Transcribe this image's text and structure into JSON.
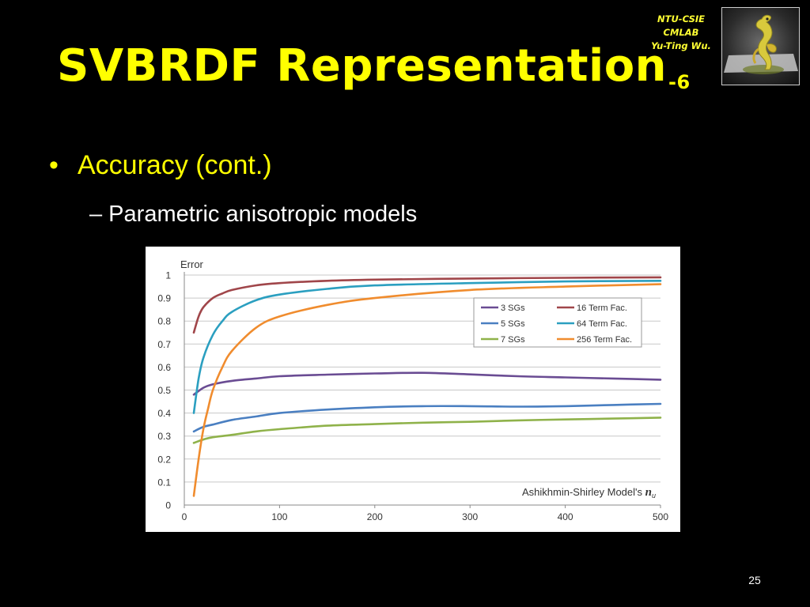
{
  "slide": {
    "title": "SVBRDF Representation",
    "title_suffix": "-6",
    "lab_line1": "NTU-CSIE",
    "lab_line2": "CMLAB",
    "lab_line3": "Yu-Ting Wu.",
    "bullet_marker": "•",
    "bullet": "Accuracy (cont.)",
    "sub_bullet": "– Parametric anisotropic models",
    "page_number": "25",
    "colors": {
      "background": "#000000",
      "title": "#ffff00",
      "text": "#ffffff"
    }
  },
  "chart_data": {
    "type": "line",
    "ylabel": "Error",
    "xlabel": "Ashikhmin-Shirley Model's",
    "xlabel_symbol": "n",
    "xlabel_subscript": "u",
    "xlim": [
      0,
      500
    ],
    "ylim": [
      0,
      1
    ],
    "xticks": [
      0,
      100,
      200,
      300,
      400,
      500
    ],
    "yticks": [
      0,
      0.1,
      0.2,
      0.3,
      0.4,
      0.5,
      0.6,
      0.7,
      0.8,
      0.9,
      1
    ],
    "grid": "horizontal",
    "legend_position": "top-right",
    "series": [
      {
        "name": "3 SGs",
        "color": "#6a4c93",
        "x": [
          10,
          20,
          30,
          50,
          75,
          100,
          150,
          200,
          250,
          300,
          350,
          400,
          450,
          500
        ],
        "y": [
          0.48,
          0.51,
          0.525,
          0.54,
          0.55,
          0.56,
          0.567,
          0.572,
          0.575,
          0.568,
          0.56,
          0.555,
          0.55,
          0.545
        ]
      },
      {
        "name": "5 SGs",
        "color": "#4a7fc1",
        "x": [
          10,
          20,
          30,
          50,
          75,
          100,
          150,
          200,
          250,
          300,
          350,
          400,
          450,
          500
        ],
        "y": [
          0.32,
          0.34,
          0.35,
          0.37,
          0.385,
          0.4,
          0.415,
          0.425,
          0.43,
          0.43,
          0.428,
          0.43,
          0.435,
          0.44
        ]
      },
      {
        "name": "7 SGs",
        "color": "#8fb24a",
        "x": [
          10,
          20,
          30,
          50,
          75,
          100,
          150,
          200,
          250,
          300,
          350,
          400,
          450,
          500
        ],
        "y": [
          0.27,
          0.285,
          0.295,
          0.305,
          0.32,
          0.33,
          0.345,
          0.352,
          0.358,
          0.362,
          0.368,
          0.372,
          0.376,
          0.38
        ]
      },
      {
        "name": "16 Term Fac.",
        "color": "#a0464a",
        "x": [
          10,
          15,
          20,
          30,
          40,
          50,
          75,
          100,
          150,
          200,
          300,
          400,
          500
        ],
        "y": [
          0.75,
          0.82,
          0.86,
          0.9,
          0.92,
          0.935,
          0.955,
          0.965,
          0.975,
          0.98,
          0.985,
          0.988,
          0.99
        ]
      },
      {
        "name": "64 Term Fac.",
        "color": "#2b9fc0",
        "x": [
          10,
          15,
          20,
          30,
          40,
          50,
          75,
          100,
          150,
          200,
          300,
          400,
          500
        ],
        "y": [
          0.4,
          0.55,
          0.64,
          0.74,
          0.8,
          0.84,
          0.89,
          0.915,
          0.94,
          0.955,
          0.965,
          0.972,
          0.975
        ]
      },
      {
        "name": "256 Term Fac.",
        "color": "#f08c2e",
        "x": [
          10,
          15,
          20,
          25,
          30,
          40,
          50,
          75,
          100,
          150,
          200,
          300,
          400,
          500
        ],
        "y": [
          0.04,
          0.2,
          0.33,
          0.42,
          0.5,
          0.6,
          0.67,
          0.77,
          0.82,
          0.87,
          0.9,
          0.935,
          0.95,
          0.96
        ]
      }
    ]
  }
}
